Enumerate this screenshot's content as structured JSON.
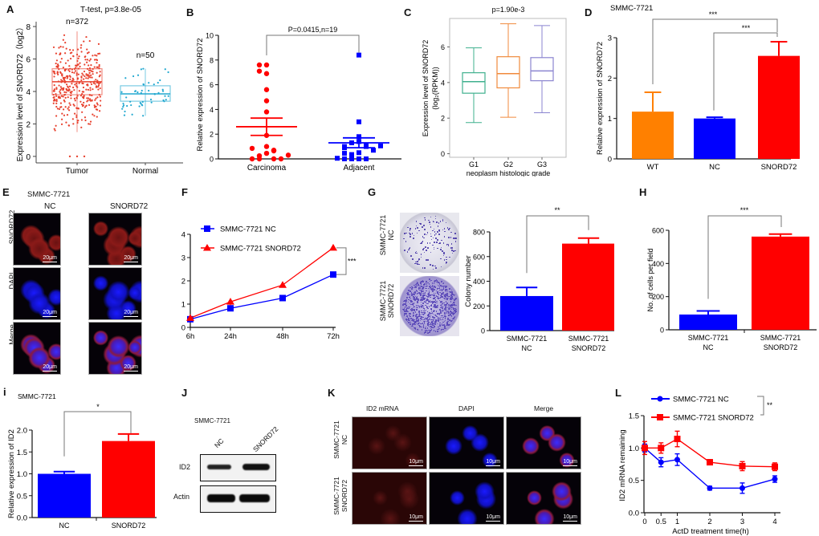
{
  "figure_labels": {
    "A": "A",
    "B": "B",
    "C": "C",
    "D": "D",
    "E": "E",
    "F": "F",
    "G": "G",
    "H": "H",
    "I": "i",
    "J": "J",
    "K": "K",
    "L": "L"
  },
  "colors": {
    "red": "#ff0000",
    "blue": "#0000ff",
    "orange": "#ff8000",
    "tumor": "#e8412e",
    "normal": "#22a8d0",
    "g1": "#3fb08e",
    "g2": "#f08a3c",
    "g3": "#8b85d0"
  },
  "chart_data": [
    {
      "id": "A",
      "type": "scatter",
      "title": "T-test, p=3.8e-05",
      "ylabel": "Expression level of SNORD72（log2）",
      "xlabel": "",
      "categories": [
        "Tumor",
        "Normal"
      ],
      "ylim": [
        -0.4,
        8.3
      ],
      "yticks": [
        0,
        2,
        4,
        6,
        8
      ],
      "annotations": [
        "n=372",
        "n=50"
      ],
      "boxes": [
        {
          "name": "Tumor",
          "min": 1.5,
          "q1": 3.8,
          "median": 4.6,
          "q3": 5.4,
          "max": 7.7,
          "n": 372
        },
        {
          "name": "Normal",
          "min": 2.5,
          "q1": 3.4,
          "median": 3.85,
          "q3": 4.35,
          "max": 5.4,
          "n": 50
        }
      ]
    },
    {
      "id": "B",
      "type": "scatter",
      "title": "P=0.0415,n=19",
      "ylabel": "Relative expression of SNORD72",
      "categories": [
        "Carcinoma",
        "Adjacent"
      ],
      "ylim": [
        0,
        10
      ],
      "yticks": [
        0,
        2,
        4,
        6,
        8,
        10
      ],
      "series": [
        {
          "name": "Carcinoma",
          "mean": 2.6,
          "sem_low": 1.9,
          "sem_high": 3.3,
          "values": [
            7.6,
            7.6,
            6.9,
            7.1,
            5.6,
            4.7,
            3.8,
            1.9,
            1.0,
            0.45,
            0.7,
            0.65,
            0.85,
            0.25,
            0.0,
            0.0,
            0.0,
            0.0,
            0.3
          ]
        },
        {
          "name": "Adjacent",
          "mean": 1.3,
          "sem_low": 0.9,
          "sem_high": 1.7,
          "values": [
            8.4,
            3.0,
            1.8,
            1.4,
            1.3,
            1.1,
            1.0,
            1.0,
            0.9,
            1.05,
            0.5,
            0.35,
            0.7,
            0.45,
            0.0,
            0.0,
            0.0,
            0.0,
            0.05
          ]
        }
      ]
    },
    {
      "id": "C",
      "type": "box",
      "title": "p=1.90e-3",
      "ylabel": "Expression level of SNORD72",
      "ylabel2": "(log₂(RPKM))",
      "xlabel": "neoplasm histologic grade",
      "categories": [
        "G1",
        "G2",
        "G3"
      ],
      "ylim": [
        -0.2,
        7.6
      ],
      "yticks": [
        0,
        2,
        4,
        6
      ],
      "boxes": [
        {
          "name": "G1",
          "min": 1.75,
          "q1": 3.4,
          "median": 4.05,
          "q3": 4.55,
          "max": 5.95
        },
        {
          "name": "G2",
          "min": 2.05,
          "q1": 3.7,
          "median": 4.5,
          "q3": 5.45,
          "max": 7.3
        },
        {
          "name": "G3",
          "min": 2.3,
          "q1": 4.1,
          "median": 4.65,
          "q3": 5.4,
          "max": 7.2
        }
      ]
    },
    {
      "id": "D",
      "type": "bar",
      "title": "SMMC-7721",
      "ylabel": "Relative expression of SNORD72",
      "categories": [
        "WT",
        "NC",
        "SNORD72"
      ],
      "values": [
        1.17,
        1.0,
        2.55
      ],
      "errors": [
        0.48,
        0.03,
        0.35
      ],
      "ylim": [
        0,
        3
      ],
      "yticks": [
        0,
        1,
        2,
        3
      ],
      "significance": [
        {
          "from": "WT",
          "to": "SNORD72",
          "label": "***"
        },
        {
          "from": "NC",
          "to": "SNORD72",
          "label": "***"
        }
      ]
    },
    {
      "id": "F",
      "type": "line",
      "ylabel": "OD values",
      "x": [
        "6h",
        "24h",
        "48h",
        "72h"
      ],
      "ylim": [
        0,
        4
      ],
      "yticks": [
        0,
        1,
        2,
        3,
        4
      ],
      "series": [
        {
          "name": "SMMC-7721 NC",
          "values": [
            0.35,
            0.82,
            1.26,
            2.27
          ],
          "errors": [
            0.03,
            0.05,
            0.04,
            0.05
          ],
          "marker": "square"
        },
        {
          "name": "SMMC-7721 SNORD72",
          "values": [
            0.4,
            1.1,
            1.82,
            3.42
          ],
          "errors": [
            0.03,
            0.15,
            0.05,
            0.05
          ],
          "marker": "triangle"
        }
      ],
      "significance": "***",
      "legend": "top-left"
    },
    {
      "id": "G",
      "type": "bar",
      "ylabel": "Colony number",
      "categories": [
        "SMMC-7721\nNC",
        "SMMC-7721\nSNORD72"
      ],
      "values": [
        280,
        705
      ],
      "errors": [
        70,
        45
      ],
      "ylim": [
        0,
        800
      ],
      "yticks": [
        0,
        200,
        400,
        600,
        800
      ],
      "significance": "**",
      "image_labels": [
        "SMMC-7721\nNC",
        "SMMC-7721\nSNORD72"
      ]
    },
    {
      "id": "H",
      "type": "bar",
      "ylabel": "No. of cells per field",
      "categories": [
        "SMMC-7721\nNC",
        "SMMC-7721\nSNORD72"
      ],
      "values": [
        92,
        562
      ],
      "errors": [
        22,
        15
      ],
      "ylim": [
        0,
        600
      ],
      "yticks": [
        0,
        200,
        400,
        600
      ],
      "significance": "***"
    },
    {
      "id": "I",
      "type": "bar",
      "title": "SMMC-7721",
      "ylabel": "Relative expression of ID2",
      "categories": [
        "NC",
        "SNORD72"
      ],
      "values": [
        1.0,
        1.75
      ],
      "errors": [
        0.05,
        0.16
      ],
      "ylim": [
        0,
        2.0
      ],
      "yticks": [
        "0.0",
        "0.5",
        "1.0",
        "1.5",
        "2.0"
      ],
      "significance": "*"
    },
    {
      "id": "L",
      "type": "line",
      "ylabel": "ID2 mRNA remaining",
      "xlabel": "ActD treatment time(h)",
      "x": [
        0,
        0.5,
        1,
        2,
        3,
        4
      ],
      "xticks": [
        "0",
        "0.5",
        "1",
        "2",
        "3",
        "4"
      ],
      "ylim": [
        0,
        1.5
      ],
      "yticks": [
        "0.0",
        "0.5",
        "1.0",
        "1.5"
      ],
      "series": [
        {
          "name": "SMMC-7721 NC",
          "values": [
            1.0,
            0.78,
            0.82,
            0.38,
            0.38,
            0.52
          ],
          "errors": [
            0.06,
            0.07,
            0.09,
            0.03,
            0.08,
            0.05
          ],
          "marker": "circle"
        },
        {
          "name": "SMMC-7721 SNORD72",
          "values": [
            1.0,
            1.0,
            1.14,
            0.78,
            0.72,
            0.71
          ],
          "errors": [
            0.1,
            0.08,
            0.12,
            0.04,
            0.07,
            0.06
          ],
          "marker": "square"
        }
      ],
      "significance": "**",
      "legend": "top"
    }
  ],
  "panel_E": {
    "cell_line": "SMMC-7721",
    "columns": [
      "NC",
      "SNORD72"
    ],
    "rows": [
      "SNORD72",
      "DAPI",
      "Merge"
    ],
    "scale_bar": "20μm"
  },
  "panel_J": {
    "cell_line": "SMMC-7721",
    "lanes": [
      "NC",
      "SNORD72"
    ],
    "rows": [
      "ID2",
      "Actin"
    ]
  },
  "panel_K": {
    "columns": [
      "ID2 mRNA",
      "DAPI",
      "Merge"
    ],
    "rows": [
      "SMMC-7721\nNC",
      "SMMC-7721\nSNORD72"
    ],
    "row_line1": [
      "SMMC-7721",
      "SMMC-7721"
    ],
    "row_line2": [
      "NC",
      "SNORD72"
    ],
    "scale_bar": "10μm"
  }
}
